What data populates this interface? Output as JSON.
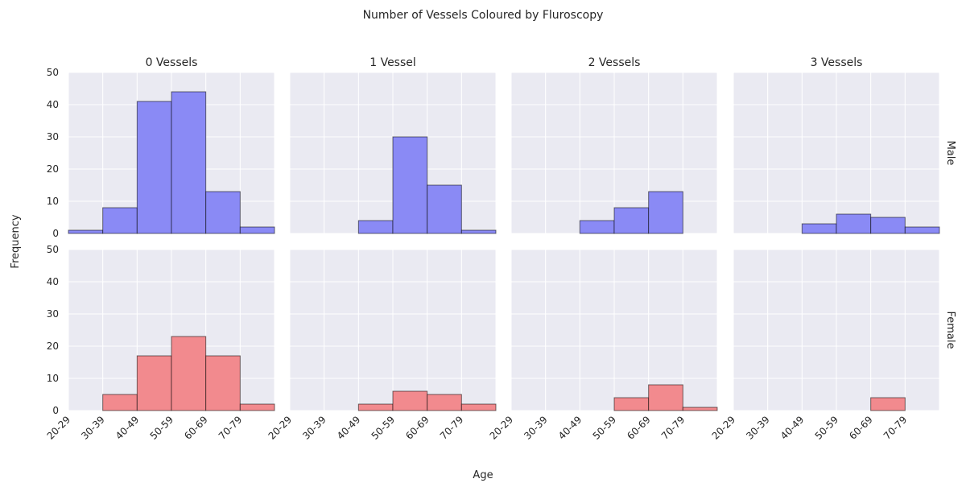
{
  "chart_data": {
    "type": "bar",
    "title": "Number of Vessels Coloured by Fluroscopy",
    "xlabel": "Age",
    "ylabel": "Frequency",
    "categories": [
      "20-29",
      "30-39",
      "40-49",
      "50-59",
      "60-69",
      "70-79"
    ],
    "ylim": [
      0,
      50
    ],
    "yticks": [
      0,
      10,
      20,
      30,
      40,
      50
    ],
    "grid": true,
    "columns": [
      "0 Vessels",
      "1 Vessel",
      "2 Vessels",
      "3 Vessels"
    ],
    "rows": [
      {
        "name": "Male",
        "color": "#8A8AF5",
        "panels": [
          [
            1,
            8,
            41,
            44,
            13,
            2
          ],
          [
            0,
            0,
            4,
            30,
            15,
            1
          ],
          [
            0,
            0,
            4,
            8,
            13,
            0
          ],
          [
            0,
            0,
            3,
            6,
            5,
            2
          ]
        ]
      },
      {
        "name": "Female",
        "color": "#F28A8E",
        "panels": [
          [
            0,
            5,
            17,
            23,
            17,
            2
          ],
          [
            0,
            0,
            2,
            6,
            5,
            2
          ],
          [
            0,
            0,
            0,
            4,
            8,
            1
          ],
          [
            0,
            0,
            0,
            0,
            4,
            0
          ]
        ]
      }
    ]
  }
}
